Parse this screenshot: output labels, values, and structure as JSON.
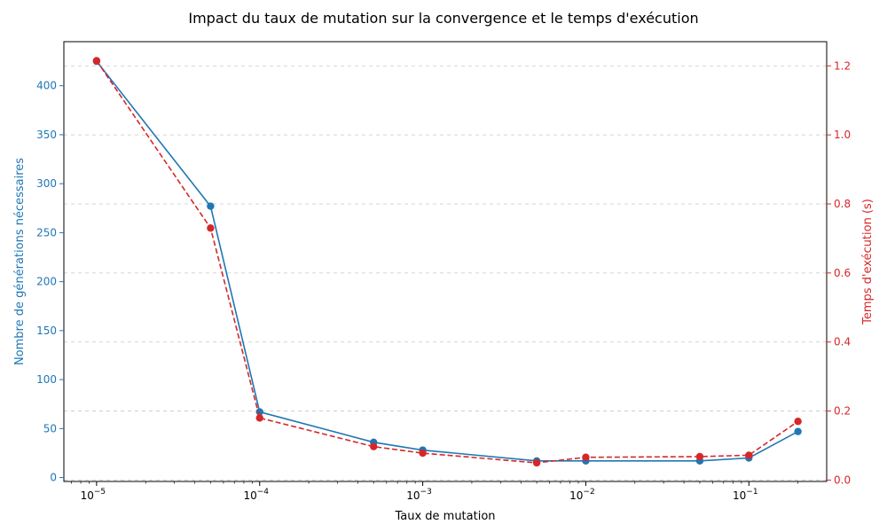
{
  "chart_data": {
    "type": "line",
    "title": "Impact du taux de mutation sur la convergence et le temps d'exécution",
    "xlabel": "Taux de mutation",
    "x_scale": "log",
    "xlim": [
      6.3e-06,
      0.3
    ],
    "x_ticks": [
      {
        "value": 1e-05,
        "base": "10",
        "exp": "−5"
      },
      {
        "value": 0.0001,
        "base": "10",
        "exp": "−4"
      },
      {
        "value": 0.001,
        "base": "10",
        "exp": "−3"
      },
      {
        "value": 0.01,
        "base": "10",
        "exp": "−2"
      },
      {
        "value": 0.1,
        "base": "10",
        "exp": "−1"
      }
    ],
    "x": [
      1e-05,
      5e-05,
      0.0001,
      0.0005,
      0.001,
      0.005,
      0.01,
      0.05,
      0.1,
      0.2
    ],
    "series": [
      {
        "name": "Nombre de générations nécessaires",
        "axis": "left",
        "color": "#1f77b4",
        "line_style": "solid",
        "values": [
          425,
          277,
          67,
          36,
          28,
          17,
          17,
          17,
          20,
          47
        ]
      },
      {
        "name": "Temps d'exécution (s)",
        "axis": "right",
        "color": "#d62728",
        "line_style": "dashed",
        "values": [
          1.215,
          0.73,
          0.18,
          0.097,
          0.078,
          0.05,
          0.066,
          0.068,
          0.072,
          0.17
        ]
      }
    ],
    "y_left": {
      "label": "Nombre de générations nécessaires",
      "color": "#1f77b4",
      "ylim": [
        -4,
        445
      ],
      "ticks": [
        0,
        50,
        100,
        150,
        200,
        250,
        300,
        350,
        400
      ]
    },
    "y_right": {
      "label": "Temps d'exécution (s)",
      "color": "#d62728",
      "ylim": [
        -0.004,
        1.27
      ],
      "ticks": [
        0.0,
        0.2,
        0.4,
        0.6,
        0.8,
        1.0,
        1.2
      ]
    },
    "grid": "horizontal dashed (right axis)"
  }
}
